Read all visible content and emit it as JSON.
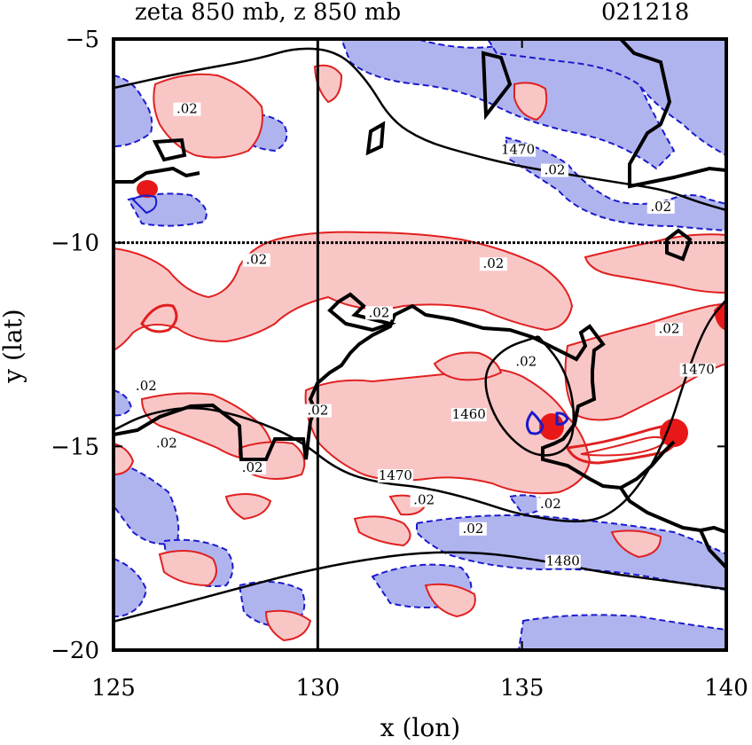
{
  "chart_data": {
    "type": "contour",
    "title": "zeta 850 mb, z 850 mb",
    "date": "021218",
    "xlabel": "x (lon)",
    "ylabel": "y (lat)",
    "xlim": [
      125,
      140
    ],
    "ylim": [
      -20,
      -5
    ],
    "xticks": [
      125,
      130,
      135,
      140
    ],
    "yticks": [
      -5,
      -10,
      -15,
      -20
    ],
    "xtick_labels": [
      "125",
      "130",
      "135",
      "140"
    ],
    "ytick_labels": [
      "−5",
      "−10",
      "−15",
      "−20"
    ],
    "reference_lines": {
      "lon": 130,
      "lat": -10
    },
    "colors": {
      "positive_vorticity_fill": "#f9c6c6",
      "positive_vorticity_line": "#e02020",
      "negative_vorticity_fill": "#b0b4ee",
      "negative_vorticity_line": "#1a1acc",
      "height_line": "#000000"
    },
    "height_contours": [
      {
        "level": 1460,
        "label": "1460",
        "points": [
          [
            135.4,
            -12.3
          ],
          [
            134.5,
            -12.6
          ],
          [
            134.0,
            -13.3
          ],
          [
            134.4,
            -14.5
          ],
          [
            135.3,
            -15.3
          ],
          [
            136.2,
            -15.1
          ],
          [
            136.3,
            -14.0
          ],
          [
            136.0,
            -13.0
          ],
          [
            135.4,
            -12.3
          ]
        ]
      },
      {
        "level": 1470,
        "label": "1470",
        "points": [
          [
            125.0,
            -14.6
          ],
          [
            125.8,
            -14.2
          ],
          [
            127.0,
            -14.0
          ],
          [
            128.3,
            -14.3
          ],
          [
            129.5,
            -14.8
          ],
          [
            130.5,
            -15.6
          ],
          [
            131.5,
            -15.9
          ],
          [
            132.6,
            -16.0
          ],
          [
            133.8,
            -16.3
          ],
          [
            135.0,
            -16.7
          ],
          [
            136.5,
            -16.9
          ],
          [
            137.3,
            -16.6
          ],
          [
            138.0,
            -15.8
          ],
          [
            138.6,
            -14.6
          ],
          [
            139.0,
            -13.3
          ],
          [
            139.5,
            -12.0
          ],
          [
            140.0,
            -11.4
          ]
        ]
      },
      {
        "level": 1470,
        "label": "1470",
        "points": [
          [
            125.0,
            -6.2
          ],
          [
            126.8,
            -5.8
          ],
          [
            128.5,
            -5.5
          ],
          [
            129.5,
            -5.2
          ],
          [
            130.5,
            -5.3
          ],
          [
            131.2,
            -6.0
          ],
          [
            131.8,
            -7.0
          ],
          [
            132.6,
            -7.5
          ],
          [
            133.6,
            -7.8
          ],
          [
            134.8,
            -8.1
          ],
          [
            136.0,
            -8.3
          ],
          [
            137.2,
            -8.5
          ],
          [
            138.5,
            -8.7
          ],
          [
            139.3,
            -9.0
          ],
          [
            140.0,
            -9.2
          ]
        ]
      },
      {
        "level": 1480,
        "label": "1480",
        "points": [
          [
            125.0,
            -19.3
          ],
          [
            126.5,
            -18.9
          ],
          [
            128.0,
            -18.5
          ],
          [
            129.5,
            -18.1
          ],
          [
            131.0,
            -17.8
          ],
          [
            132.5,
            -17.6
          ],
          [
            134.0,
            -17.6
          ],
          [
            135.5,
            -17.8
          ],
          [
            137.0,
            -18.1
          ],
          [
            138.5,
            -18.3
          ],
          [
            140.0,
            -18.5
          ]
        ]
      }
    ],
    "contour_labels": [
      {
        "text": ".02",
        "lon": 126.8,
        "lat": -6.8
      },
      {
        "text": "1470",
        "lon": 134.9,
        "lat": -7.8
      },
      {
        "text": ".02",
        "lon": 135.8,
        "lat": -8.3
      },
      {
        "text": ".02",
        "lon": 138.4,
        "lat": -9.2
      },
      {
        "text": ".02",
        "lon": 128.5,
        "lat": -10.5
      },
      {
        "text": ".02",
        "lon": 134.3,
        "lat": -10.6
      },
      {
        "text": ".02",
        "lon": 131.5,
        "lat": -11.8
      },
      {
        "text": ".02",
        "lon": 138.6,
        "lat": -12.2
      },
      {
        "text": ".02",
        "lon": 135.1,
        "lat": -13.0
      },
      {
        "text": ".02",
        "lon": 125.8,
        "lat": -13.6
      },
      {
        "text": ".02",
        "lon": 130.0,
        "lat": -14.2
      },
      {
        "text": "1460",
        "lon": 133.7,
        "lat": -14.3
      },
      {
        "text": "1470",
        "lon": 139.3,
        "lat": -13.2
      },
      {
        "text": ".02",
        "lon": 126.3,
        "lat": -15.0
      },
      {
        "text": ".02",
        "lon": 128.4,
        "lat": -15.6
      },
      {
        "text": "1470",
        "lon": 131.9,
        "lat": -15.8
      },
      {
        "text": ".02",
        "lon": 132.6,
        "lat": -16.4
      },
      {
        "text": ".02",
        "lon": 135.7,
        "lat": -16.5
      },
      {
        "text": ".02",
        "lon": 133.8,
        "lat": -17.1
      },
      {
        "text": "1480",
        "lon": 136.0,
        "lat": -17.9
      }
    ]
  }
}
